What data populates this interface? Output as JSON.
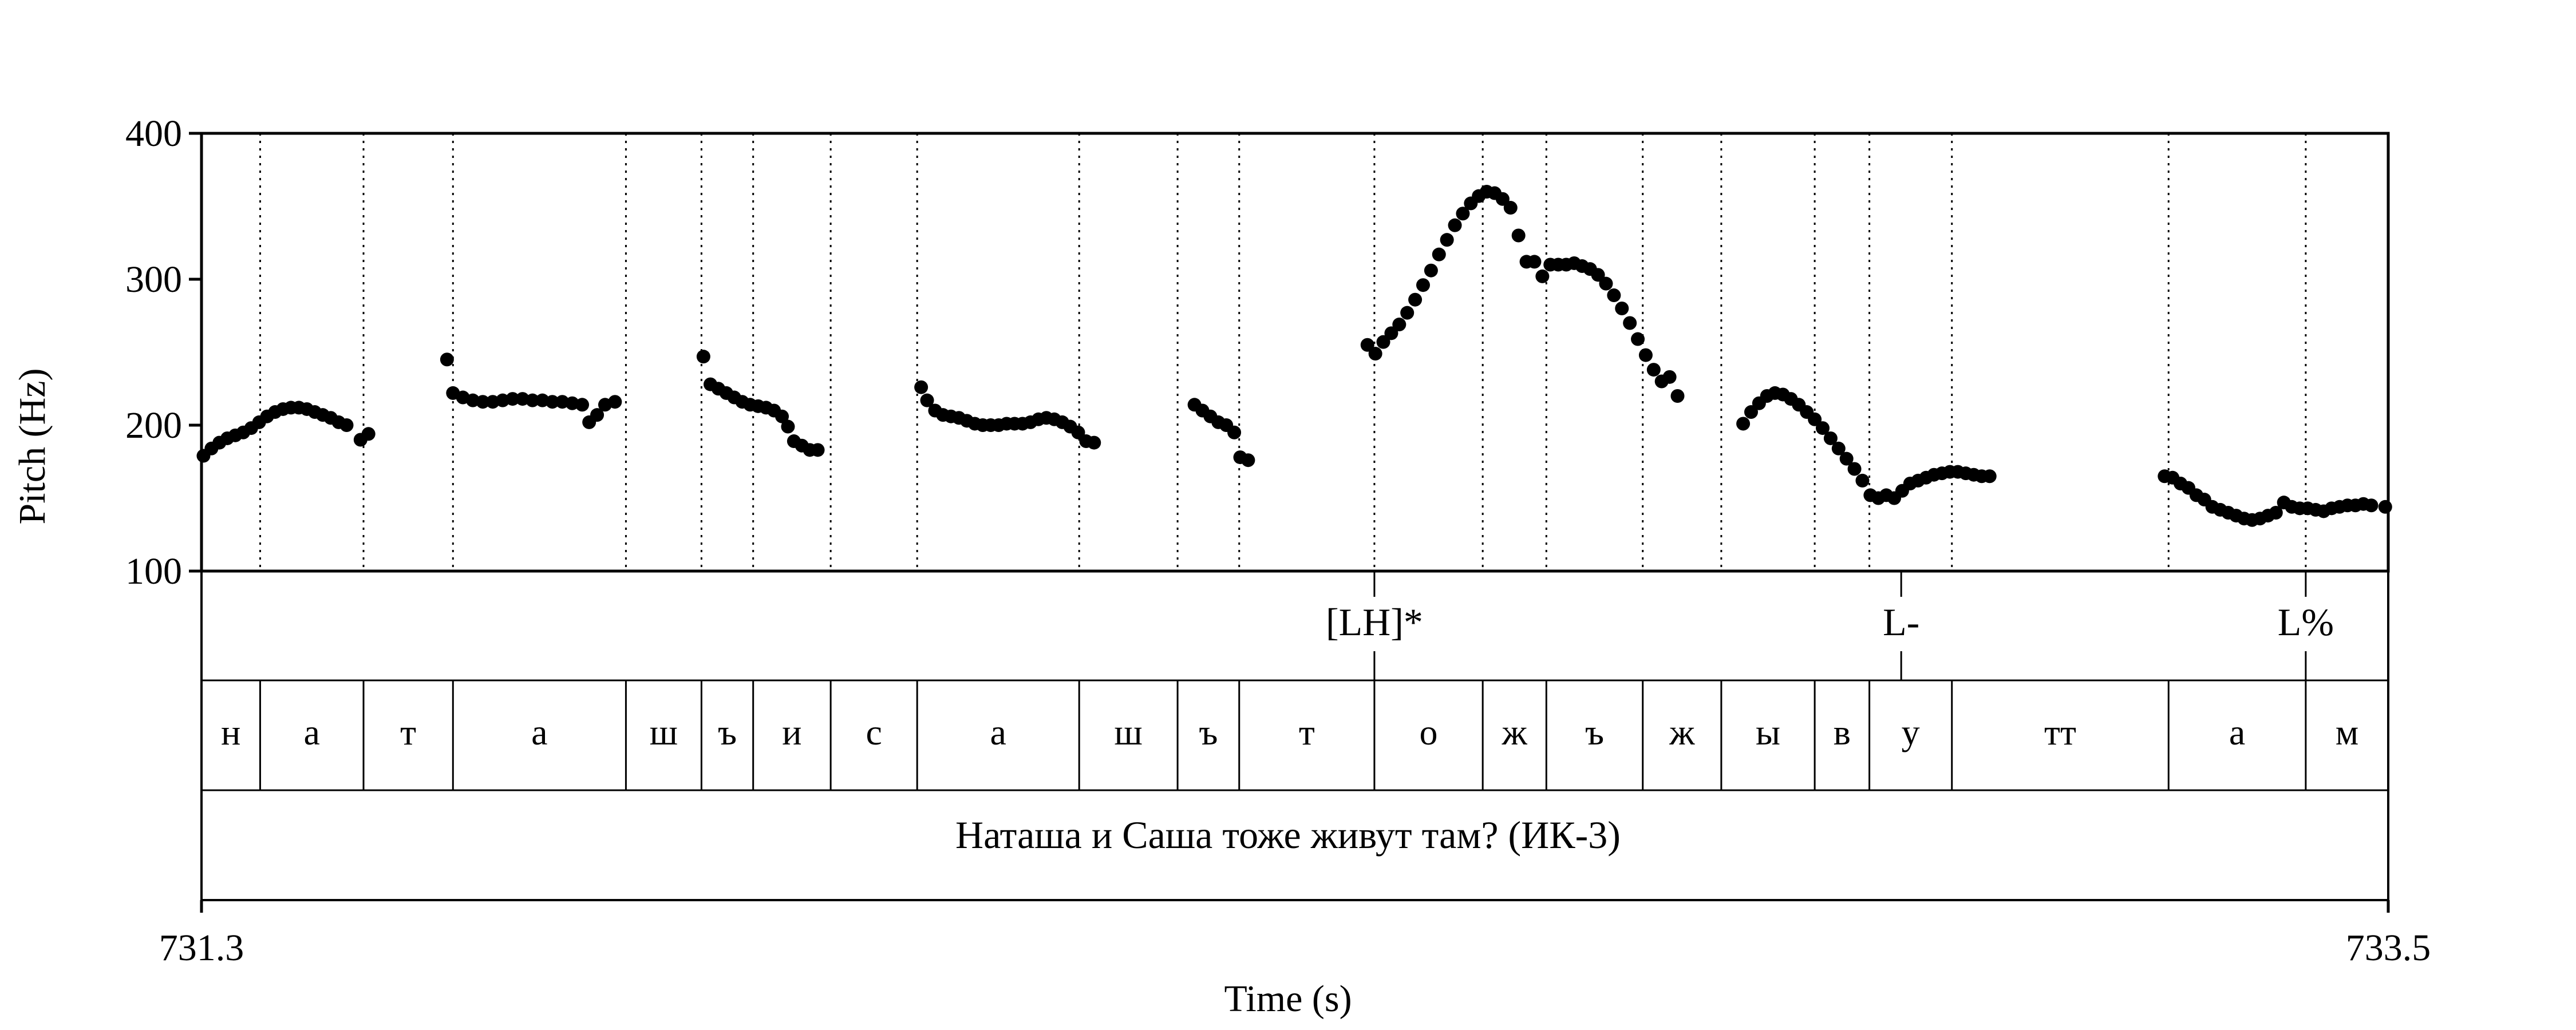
{
  "chart_data": {
    "type": "scatter",
    "xlabel": "Time (s)",
    "ylabel": "Pitch (Hz)",
    "xlim": [
      731.3,
      733.5
    ],
    "ylim": [
      100,
      400
    ],
    "x_ticks": [
      "731.3",
      "733.5"
    ],
    "y_ticks": [
      "100",
      "200",
      "300",
      "400"
    ],
    "grid": "vertical dotted lines at segment boundaries",
    "point_color": "#000000",
    "series": [
      {
        "points": [
          [
            731.302,
            179
          ],
          [
            731.31,
            184
          ],
          [
            731.318,
            188
          ],
          [
            731.326,
            191
          ],
          [
            731.334,
            193
          ],
          [
            731.342,
            195
          ],
          [
            731.35,
            198
          ],
          [
            731.358,
            202
          ],
          [
            731.366,
            206
          ],
          [
            731.374,
            209
          ],
          [
            731.382,
            211
          ],
          [
            731.39,
            212
          ],
          [
            731.398,
            212
          ],
          [
            731.406,
            211
          ],
          [
            731.414,
            209
          ],
          [
            731.422,
            207
          ],
          [
            731.43,
            205
          ],
          [
            731.438,
            202
          ],
          [
            731.446,
            200
          ],
          [
            731.46,
            190
          ],
          [
            731.468,
            194
          ],
          [
            731.547,
            245
          ],
          [
            731.553,
            222
          ],
          [
            731.563,
            219
          ],
          [
            731.573,
            217
          ],
          [
            731.583,
            216
          ],
          [
            731.593,
            216
          ],
          [
            731.603,
            217
          ],
          [
            731.613,
            218
          ],
          [
            731.623,
            218
          ],
          [
            731.633,
            217
          ],
          [
            731.643,
            217
          ],
          [
            731.653,
            216
          ],
          [
            731.663,
            216
          ],
          [
            731.673,
            215
          ],
          [
            731.683,
            214
          ],
          [
            731.69,
            202
          ],
          [
            731.698,
            207
          ],
          [
            731.706,
            214
          ],
          [
            731.716,
            216
          ],
          [
            731.805,
            247
          ],
          [
            731.812,
            228
          ],
          [
            731.82,
            225
          ],
          [
            731.828,
            222
          ],
          [
            731.836,
            219
          ],
          [
            731.844,
            216
          ],
          [
            731.852,
            214
          ],
          [
            731.86,
            213
          ],
          [
            731.868,
            212
          ],
          [
            731.876,
            210
          ],
          [
            731.884,
            206
          ],
          [
            731.89,
            199
          ],
          [
            731.896,
            189
          ],
          [
            731.904,
            186
          ],
          [
            731.912,
            183
          ],
          [
            731.92,
            183
          ],
          [
            732.024,
            226
          ],
          [
            732.03,
            217
          ],
          [
            732.038,
            210
          ],
          [
            732.046,
            207
          ],
          [
            732.054,
            206
          ],
          [
            732.062,
            205
          ],
          [
            732.07,
            203
          ],
          [
            732.078,
            201
          ],
          [
            732.086,
            200
          ],
          [
            732.094,
            200
          ],
          [
            732.102,
            200
          ],
          [
            732.11,
            201
          ],
          [
            732.118,
            201
          ],
          [
            732.126,
            201
          ],
          [
            732.134,
            202
          ],
          [
            732.142,
            204
          ],
          [
            732.15,
            205
          ],
          [
            732.158,
            204
          ],
          [
            732.166,
            202
          ],
          [
            732.174,
            199
          ],
          [
            732.182,
            195
          ],
          [
            732.19,
            189
          ],
          [
            732.198,
            188
          ],
          [
            732.299,
            214
          ],
          [
            732.307,
            210
          ],
          [
            732.315,
            206
          ],
          [
            732.323,
            202
          ],
          [
            732.331,
            200
          ],
          [
            732.339,
            195
          ],
          [
            732.345,
            178
          ],
          [
            732.353,
            176
          ],
          [
            732.473,
            255
          ],
          [
            732.481,
            249
          ],
          [
            732.489,
            257
          ],
          [
            732.497,
            263
          ],
          [
            732.505,
            269
          ],
          [
            732.513,
            277
          ],
          [
            732.521,
            286
          ],
          [
            732.529,
            296
          ],
          [
            732.537,
            306
          ],
          [
            732.545,
            317
          ],
          [
            732.553,
            327
          ],
          [
            732.561,
            337
          ],
          [
            732.569,
            345
          ],
          [
            732.577,
            352
          ],
          [
            732.585,
            357
          ],
          [
            732.593,
            360
          ],
          [
            732.601,
            359
          ],
          [
            732.609,
            355
          ],
          [
            732.617,
            349
          ],
          [
            732.625,
            330
          ],
          [
            732.633,
            312
          ],
          [
            732.641,
            312
          ],
          [
            732.649,
            302
          ],
          [
            732.657,
            310
          ],
          [
            732.665,
            310
          ],
          [
            732.673,
            310
          ],
          [
            732.681,
            311
          ],
          [
            732.689,
            309
          ],
          [
            732.697,
            307
          ],
          [
            732.705,
            303
          ],
          [
            732.713,
            297
          ],
          [
            732.721,
            289
          ],
          [
            732.729,
            280
          ],
          [
            732.737,
            270
          ],
          [
            732.745,
            259
          ],
          [
            732.753,
            248
          ],
          [
            732.761,
            238
          ],
          [
            732.769,
            230
          ],
          [
            732.777,
            233
          ],
          [
            732.785,
            220
          ],
          [
            732.851,
            201
          ],
          [
            732.859,
            209
          ],
          [
            732.867,
            215
          ],
          [
            732.875,
            220
          ],
          [
            732.883,
            222
          ],
          [
            732.891,
            221
          ],
          [
            732.899,
            218
          ],
          [
            732.907,
            214
          ],
          [
            732.915,
            209
          ],
          [
            732.923,
            204
          ],
          [
            732.931,
            198
          ],
          [
            732.939,
            191
          ],
          [
            732.947,
            184
          ],
          [
            732.955,
            177
          ],
          [
            732.963,
            170
          ],
          [
            732.971,
            162
          ],
          [
            732.979,
            152
          ],
          [
            732.987,
            150
          ],
          [
            732.995,
            152
          ],
          [
            733.003,
            150
          ],
          [
            733.011,
            155
          ],
          [
            733.019,
            160
          ],
          [
            733.027,
            162
          ],
          [
            733.035,
            164
          ],
          [
            733.043,
            166
          ],
          [
            733.051,
            167
          ],
          [
            733.059,
            168
          ],
          [
            733.067,
            168
          ],
          [
            733.075,
            167
          ],
          [
            733.083,
            166
          ],
          [
            733.091,
            165
          ],
          [
            733.099,
            165
          ],
          [
            733.275,
            165
          ],
          [
            733.283,
            164
          ],
          [
            733.291,
            160
          ],
          [
            733.299,
            157
          ],
          [
            733.307,
            152
          ],
          [
            733.315,
            149
          ],
          [
            733.323,
            144
          ],
          [
            733.331,
            142
          ],
          [
            733.339,
            140
          ],
          [
            733.347,
            138
          ],
          [
            733.355,
            136
          ],
          [
            733.363,
            135
          ],
          [
            733.371,
            136
          ],
          [
            733.379,
            138
          ],
          [
            733.387,
            140
          ],
          [
            733.395,
            147
          ],
          [
            733.403,
            144
          ],
          [
            733.411,
            143
          ],
          [
            733.419,
            143
          ],
          [
            733.427,
            142
          ],
          [
            733.435,
            141
          ],
          [
            733.443,
            143
          ],
          [
            733.451,
            144
          ],
          [
            733.459,
            145
          ],
          [
            733.467,
            145
          ],
          [
            733.475,
            146
          ],
          [
            733.483,
            145
          ],
          [
            733.497,
            144
          ]
        ]
      }
    ],
    "segment_boundaries": [
      731.359,
      731.463,
      731.553,
      731.727,
      731.803,
      731.855,
      731.933,
      732.02,
      732.183,
      732.282,
      732.344,
      732.48,
      732.589,
      732.653,
      732.75,
      732.829,
      732.923,
      732.978,
      733.061,
      733.279,
      733.417
    ],
    "tones": [
      {
        "label": "[LH]*",
        "time": 732.48
      },
      {
        "label": "L-",
        "time": 733.01
      },
      {
        "label": "L%",
        "time": 733.417
      }
    ],
    "segments": [
      {
        "label": "н",
        "start": 731.3,
        "end": 731.359
      },
      {
        "label": "а",
        "start": 731.359,
        "end": 731.463
      },
      {
        "label": "т",
        "start": 731.463,
        "end": 731.553
      },
      {
        "label": "а",
        "start": 731.553,
        "end": 731.727
      },
      {
        "label": "ш",
        "start": 731.727,
        "end": 731.803
      },
      {
        "label": "ъ",
        "start": 731.803,
        "end": 731.855
      },
      {
        "label": "и",
        "start": 731.855,
        "end": 731.933
      },
      {
        "label": "с",
        "start": 731.933,
        "end": 732.02
      },
      {
        "label": "а",
        "start": 732.02,
        "end": 732.183
      },
      {
        "label": "ш",
        "start": 732.183,
        "end": 732.282
      },
      {
        "label": "ъ",
        "start": 732.282,
        "end": 732.344
      },
      {
        "label": "т",
        "start": 732.344,
        "end": 732.48
      },
      {
        "label": "о",
        "start": 732.48,
        "end": 732.589
      },
      {
        "label": "ж",
        "start": 732.589,
        "end": 732.653
      },
      {
        "label": "ъ",
        "start": 732.653,
        "end": 732.75
      },
      {
        "label": "ж",
        "start": 732.75,
        "end": 732.829
      },
      {
        "label": "ы",
        "start": 732.829,
        "end": 732.923
      },
      {
        "label": "в",
        "start": 732.923,
        "end": 732.978
      },
      {
        "label": "у",
        "start": 732.978,
        "end": 733.061
      },
      {
        "label": "тт",
        "start": 733.061,
        "end": 733.279
      },
      {
        "label": "а",
        "start": 733.279,
        "end": 733.417
      },
      {
        "label": "м",
        "start": 733.417,
        "end": 733.5
      }
    ],
    "sentence": "Наташа и Саша тоже живут там? (ИК-3)"
  }
}
